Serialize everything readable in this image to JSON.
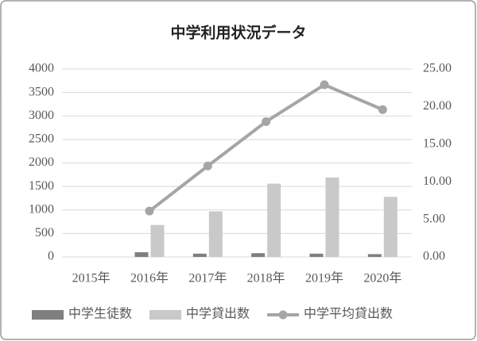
{
  "chart_data": {
    "type": "combo",
    "title": "中学利用状況データ",
    "categories": [
      "2015年",
      "2016年",
      "2017年",
      "2018年",
      "2019年",
      "2020年"
    ],
    "series": [
      {
        "name": "中学生徒数",
        "type": "bar",
        "color": "#7f7f7f",
        "values": [
          null,
          100,
          70,
          80,
          70,
          60
        ]
      },
      {
        "name": "中学貸出数",
        "type": "bar",
        "color": "#c9c9c9",
        "values": [
          null,
          680,
          970,
          1560,
          1690,
          1280
        ]
      },
      {
        "name": "中学平均貸出数",
        "type": "line",
        "axis": "y2",
        "color": "#a5a5a5",
        "values": [
          null,
          6.1,
          12.1,
          18.0,
          22.9,
          19.6
        ]
      }
    ],
    "ylim": [
      0,
      4000
    ],
    "yticks": [
      0,
      500,
      1000,
      1500,
      2000,
      2500,
      3000,
      3500,
      4000
    ],
    "y2lim": [
      0,
      25
    ],
    "y2ticks": [
      {
        "value": 0,
        "label": "0.00"
      },
      {
        "value": 5,
        "label": "5.00"
      },
      {
        "value": 10,
        "label": "10.00"
      },
      {
        "value": 15,
        "label": "15.00"
      },
      {
        "value": 20,
        "label": "20.00"
      },
      {
        "value": 25,
        "label": "25.00"
      }
    ],
    "grid": true,
    "legend": "bottom"
  }
}
